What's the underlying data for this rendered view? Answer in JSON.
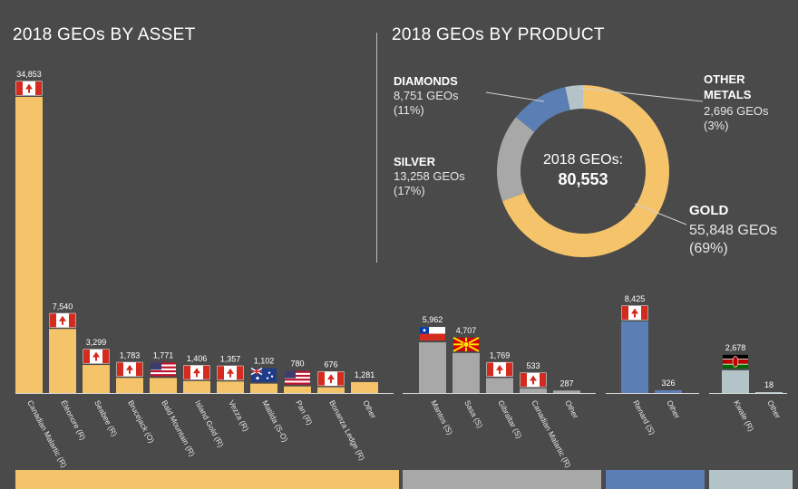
{
  "titles": {
    "asset": "2018 GEOs BY ASSET",
    "product": "2018 GEOs BY PRODUCT"
  },
  "colors": {
    "gold": "#f5c46a",
    "silver": "#a8a8a8",
    "diamonds": "#5b7fb5",
    "other_metals": "#b4c3c8",
    "background": "#4a4a4a"
  },
  "chart_data": [
    {
      "type": "pie",
      "title": "2018 GEOs BY PRODUCT",
      "center_label": "2018 GEOs:",
      "center_value": "80,553",
      "total": 80553,
      "slices": [
        {
          "name": "GOLD",
          "value": 55848,
          "value_label": "55,848 GEOs",
          "pct_label": "(69%)",
          "color": "#f5c46a"
        },
        {
          "name": "SILVER",
          "value": 13258,
          "value_label": "13,258 GEOs",
          "pct_label": "(17%)",
          "color": "#a8a8a8"
        },
        {
          "name": "DIAMONDS",
          "value": 8751,
          "value_label": "8,751 GEOs",
          "pct_label": "(11%)",
          "color": "#5b7fb5"
        },
        {
          "name": "OTHER METALS",
          "name_lines": [
            "OTHER",
            "METALS"
          ],
          "value": 2696,
          "value_label": "2,696 GEOs",
          "pct_label": "(3%)",
          "color": "#b4c3c8"
        }
      ]
    },
    {
      "type": "bar",
      "title": "2018 GEOs BY ASSET",
      "groups": [
        {
          "name": "gold",
          "color": "#f5c46a",
          "bars": [
            {
              "category": "Canadian Malartic (R)",
              "value": 34853,
              "value_label": "34,853",
              "flag": "canada"
            },
            {
              "category": "Éléonore (R)",
              "value": 7540,
              "value_label": "7,540",
              "flag": "canada"
            },
            {
              "category": "Seabee (R)",
              "value": 3299,
              "value_label": "3,299",
              "flag": "canada"
            },
            {
              "category": "Brucejack (O)",
              "value": 1783,
              "value_label": "1,783",
              "flag": "canada"
            },
            {
              "category": "Bald Mountain (R)",
              "value": 1771,
              "value_label": "1,771",
              "flag": "usa"
            },
            {
              "category": "Island Gold (R)",
              "value": 1406,
              "value_label": "1,406",
              "flag": "canada"
            },
            {
              "category": "Vezza (R)",
              "value": 1357,
              "value_label": "1,357",
              "flag": "canada"
            },
            {
              "category": "Matilda (S-O)",
              "value": 1102,
              "value_label": "1,102",
              "flag": "australia"
            },
            {
              "category": "Pan (R)",
              "value": 780,
              "value_label": "780",
              "flag": "usa"
            },
            {
              "category": "Bonanza Ledge (R)",
              "value": 676,
              "value_label": "676",
              "flag": "canada"
            },
            {
              "category": "Other",
              "value": 1281,
              "value_label": "1,281",
              "flag": ""
            }
          ]
        },
        {
          "name": "silver",
          "color": "#a8a8a8",
          "bars": [
            {
              "category": "Mantos (S)",
              "value": 5962,
              "value_label": "5,962",
              "flag": "chile"
            },
            {
              "category": "Sasa (S)",
              "value": 4707,
              "value_label": "4,707",
              "flag": "macedonia"
            },
            {
              "category": "Gibraltar (S)",
              "value": 1769,
              "value_label": "1,769",
              "flag": "canada"
            },
            {
              "category": "Canadian Malartic (R)",
              "value": 533,
              "value_label": "533",
              "flag": "canada"
            },
            {
              "category": "Other",
              "value": 287,
              "value_label": "287",
              "flag": ""
            }
          ]
        },
        {
          "name": "diamonds",
          "color": "#5b7fb5",
          "bars": [
            {
              "category": "Renard (S)",
              "value": 8425,
              "value_label": "8,425",
              "flag": "canada"
            },
            {
              "category": "Other",
              "value": 326,
              "value_label": "326",
              "flag": ""
            }
          ]
        },
        {
          "name": "other metals",
          "color": "#b4c3c8",
          "bars": [
            {
              "category": "Kwale (R)",
              "value": 2678,
              "value_label": "2,678",
              "flag": "kenya"
            },
            {
              "category": "Other",
              "value": 18,
              "value_label": "18",
              "flag": ""
            }
          ]
        }
      ]
    }
  ]
}
